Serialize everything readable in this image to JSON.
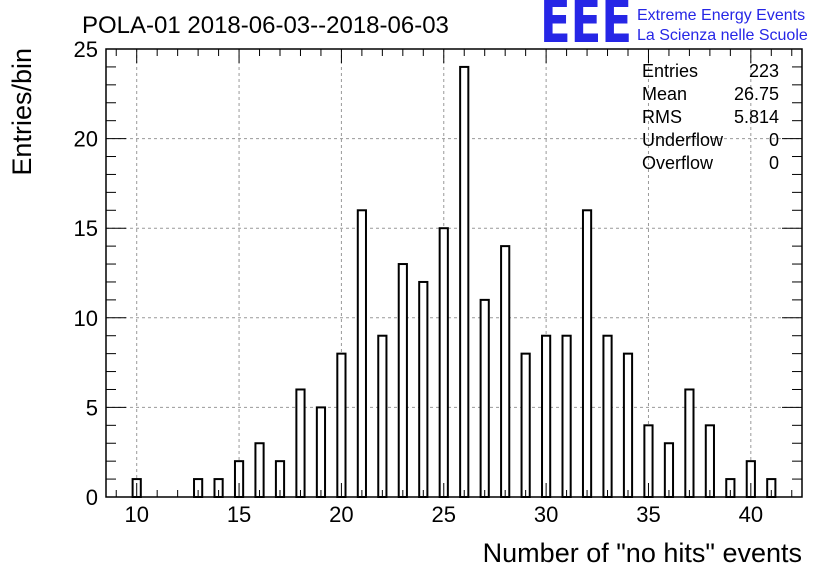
{
  "header": {
    "title": "POLA-01 2018-06-03--2018-06-03",
    "logo_text": "EEE",
    "brand_line1": "Extreme Energy Events",
    "brand_line2": "La Scienza nelle Scuole"
  },
  "stats": {
    "rows": [
      {
        "label": "Entries",
        "value": "223"
      },
      {
        "label": "Mean",
        "value": "26.75"
      },
      {
        "label": "RMS",
        "value": "5.814"
      },
      {
        "label": "Underflow",
        "value": "0"
      },
      {
        "label": "Overflow",
        "value": "0"
      }
    ]
  },
  "colors": {
    "logo": "#2626e6",
    "bars": "#000000",
    "grid": "#999999"
  },
  "chart_data": {
    "type": "bar",
    "xlabel": "Number of \"no hits\" events",
    "ylabel": "Entries/bin",
    "xlim": [
      8.5,
      42.5
    ],
    "ylim": [
      0,
      25
    ],
    "grid": true,
    "bar_width": 0.4,
    "x_ticks": [
      10,
      15,
      20,
      25,
      30,
      35,
      40
    ],
    "y_ticks": [
      0,
      5,
      10,
      15,
      20,
      25
    ],
    "x_tick_labels": [
      "10",
      "15",
      "20",
      "25",
      "30",
      "35",
      "40"
    ],
    "y_tick_labels": [
      "0",
      "5",
      "10",
      "15",
      "20",
      "25"
    ],
    "x": [
      9,
      10,
      11,
      12,
      13,
      14,
      15,
      16,
      17,
      18,
      19,
      20,
      21,
      22,
      23,
      24,
      25,
      26,
      27,
      28,
      29,
      30,
      31,
      32,
      33,
      34,
      35,
      36,
      37,
      38,
      39,
      40,
      41,
      42
    ],
    "values": [
      0,
      1,
      0,
      0,
      1,
      1,
      2,
      3,
      2,
      6,
      5,
      8,
      16,
      9,
      13,
      12,
      15,
      24,
      11,
      14,
      8,
      9,
      9,
      16,
      9,
      8,
      4,
      3,
      6,
      4,
      1,
      2,
      1,
      0
    ]
  }
}
